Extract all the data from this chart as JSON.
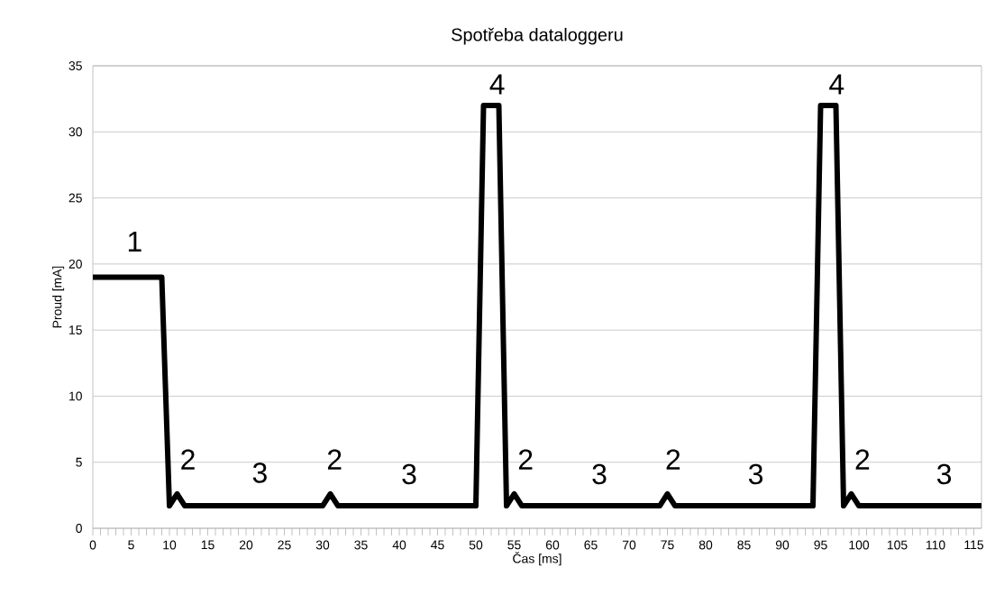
{
  "chart_data": {
    "type": "line",
    "title": "Spotřeba dataloggeru",
    "xlabel": "Čas [ms]",
    "ylabel": "Proud [mA]",
    "x": [
      0,
      9,
      10,
      11,
      12,
      30,
      31,
      32,
      50,
      51,
      53,
      54,
      55,
      56,
      74,
      75,
      76,
      94,
      95,
      97,
      98,
      99,
      100,
      116
    ],
    "series": [
      {
        "color": "#000000",
        "values": [
          19,
          19,
          1.7,
          2.6,
          1.7,
          1.7,
          2.6,
          1.7,
          1.7,
          32,
          32,
          1.7,
          2.6,
          1.7,
          1.7,
          2.6,
          1.7,
          1.7,
          32,
          32,
          1.7,
          2.6,
          1.7,
          1.7
        ]
      }
    ],
    "xlim": [
      0,
      116
    ],
    "ylim": [
      0,
      35
    ],
    "xticks": [
      0,
      5,
      10,
      15,
      20,
      25,
      30,
      35,
      40,
      45,
      50,
      55,
      60,
      65,
      70,
      75,
      80,
      85,
      90,
      95,
      100,
      105,
      110,
      115
    ],
    "yticks": [
      0,
      5,
      10,
      15,
      20,
      25,
      30,
      35
    ],
    "grid": "y",
    "annotations": [
      "1",
      "2",
      "3",
      "2",
      "3",
      "4",
      "2",
      "3",
      "2",
      "3",
      "4",
      "2",
      "3"
    ]
  }
}
